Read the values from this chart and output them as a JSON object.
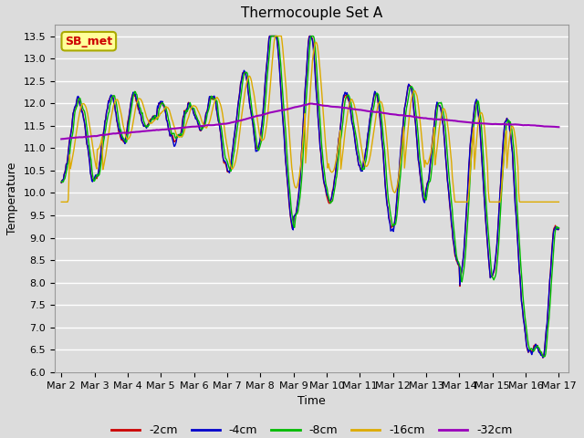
{
  "title": "Thermocouple Set A",
  "xlabel": "Time",
  "ylabel": "Temperature",
  "ylim": [
    6.0,
    13.75
  ],
  "yticks": [
    6.0,
    6.5,
    7.0,
    7.5,
    8.0,
    8.5,
    9.0,
    9.5,
    10.0,
    10.5,
    11.0,
    11.5,
    12.0,
    12.5,
    13.0,
    13.5
  ],
  "xtick_labels": [
    "Mar 2",
    "Mar 3",
    "Mar 4",
    "Mar 5",
    "Mar 6",
    "Mar 7",
    "Mar 8",
    "Mar 9",
    "Mar 10",
    "Mar 11",
    "Mar 12",
    "Mar 13",
    "Mar 14",
    "Mar 15",
    "Mar 16",
    "Mar 17"
  ],
  "n_days": 15,
  "points_per_day": 48,
  "colors": {
    "-2cm": "#cc0000",
    "-4cm": "#0000cc",
    "-8cm": "#00bb00",
    "-16cm": "#ddaa00",
    "-32cm": "#9900bb"
  },
  "legend_labels": [
    "-2cm",
    "-4cm",
    "-8cm",
    "-16cm",
    "-32cm"
  ],
  "annotation_text": "SB_met",
  "annotation_color": "#cc0000",
  "annotation_bg": "#ffff99",
  "annotation_border": "#aaaa00",
  "bg_color": "#dcdcdc",
  "grid_color": "#ffffff",
  "title_fontsize": 11,
  "axis_fontsize": 9,
  "tick_fontsize": 8,
  "legend_fontsize": 9
}
